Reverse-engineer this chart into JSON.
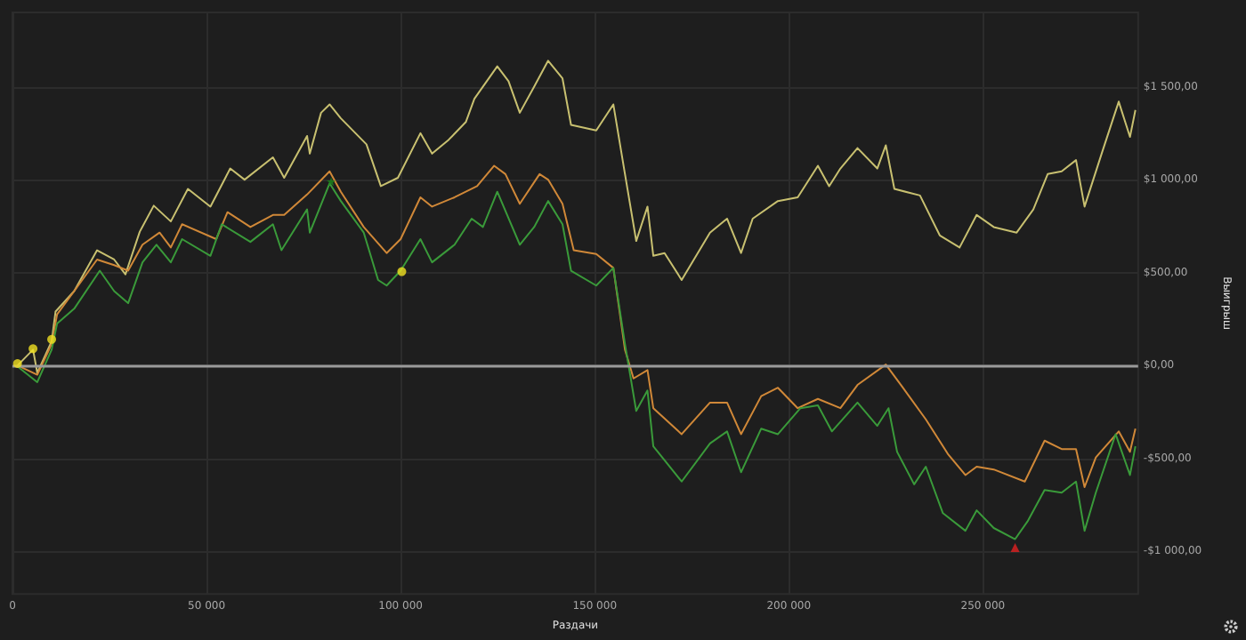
{
  "chart_data": {
    "type": "line",
    "xlabel": "Раздачи",
    "ylabel": "Выигрыш",
    "xlim": [
      0,
      290000
    ],
    "ylim": [
      -1230,
      1900
    ],
    "xticks": [
      0,
      {
        "value": 50000,
        "label": "50 000"
      },
      {
        "value": 100000,
        "label": "100 000"
      },
      {
        "value": 150000,
        "label": "150 000"
      },
      {
        "value": 200000,
        "label": "200 000"
      },
      {
        "value": 250000,
        "label": "250 000"
      }
    ],
    "yticks": [
      {
        "value": -1000,
        "label": "-$1 000,00"
      },
      {
        "value": -500,
        "label": "-$500,00"
      },
      {
        "value": 0,
        "label": "$0,00"
      },
      {
        "value": 500,
        "label": "$500,00"
      },
      {
        "value": 1000,
        "label": "$1 000,00"
      },
      {
        "value": 1500,
        "label": "$1 500,00"
      }
    ],
    "grid": true,
    "marker": "none",
    "ref_lines": [
      {
        "axis": "y",
        "value": 0,
        "color": "#9a9a9a"
      }
    ],
    "series": [
      {
        "color": "#c8c070",
        "x": [
          1300,
          5300,
          6400,
          10100,
          11100,
          15900,
          21800,
          26200,
          29100,
          32800,
          36400,
          40800,
          45200,
          51000,
          56100,
          59800,
          67100,
          70000,
          75900,
          76600,
          79500,
          81700,
          84600,
          91200,
          94900,
          99300,
          105100,
          108100,
          112400,
          116800,
          119000,
          124900,
          127800,
          130700,
          134400,
          138000,
          141700,
          143900,
          150400,
          154800,
          157800,
          160700,
          163600,
          165100,
          168000,
          172400,
          179700,
          184100,
          187700,
          190700,
          197200,
          202300,
          207500,
          210400,
          213300,
          217700,
          222800,
          225000,
          227200,
          233800,
          238900,
          244000,
          248400,
          252800,
          258700,
          263000,
          266700,
          270300,
          274000,
          276200,
          280600,
          285000,
          287900,
          289300
        ],
        "values": [
          0,
          85,
          -40,
          130,
          290,
          400,
          620,
          570,
          490,
          720,
          860,
          775,
          950,
          855,
          1060,
          1000,
          1120,
          1010,
          1235,
          1140,
          1360,
          1405,
          1330,
          1190,
          965,
          1010,
          1250,
          1140,
          1215,
          1310,
          1435,
          1610,
          1530,
          1360,
          1500,
          1640,
          1545,
          1295,
          1265,
          1405,
          1030,
          670,
          855,
          590,
          605,
          460,
          715,
          790,
          605,
          790,
          885,
          905,
          1075,
          965,
          1060,
          1170,
          1060,
          1185,
          950,
          915,
          700,
          635,
          810,
          745,
          715,
          840,
          1030,
          1045,
          1105,
          855,
          1140,
          1420,
          1230,
          1375
        ]
      },
      {
        "color": "#d08838",
        "x": [
          1300,
          6400,
          10100,
          11500,
          15900,
          21800,
          26200,
          29800,
          33500,
          37900,
          40800,
          43700,
          52500,
          55400,
          61300,
          67100,
          70000,
          75900,
          81700,
          84600,
          90500,
          96400,
          100000,
          105100,
          108100,
          113900,
          119700,
          124100,
          127000,
          130700,
          135800,
          138000,
          141700,
          144600,
          150400,
          154800,
          157800,
          160000,
          163600,
          165100,
          172400,
          179700,
          184100,
          187700,
          192900,
          197200,
          202300,
          207500,
          213300,
          217700,
          225000,
          229400,
          235300,
          241100,
          245500,
          248400,
          252800,
          260800,
          265900,
          270300,
          274000,
          276200,
          279100,
          285000,
          287900,
          289300
        ],
        "values": [
          0,
          -50,
          115,
          275,
          400,
          570,
          540,
          510,
          650,
          715,
          635,
          760,
          680,
          825,
          745,
          810,
          810,
          920,
          1045,
          935,
          745,
          605,
          680,
          905,
          855,
          905,
          965,
          1075,
          1030,
          870,
          1030,
          1000,
          870,
          620,
          600,
          525,
          85,
          -70,
          -25,
          -230,
          -370,
          -200,
          -200,
          -370,
          -165,
          -120,
          -230,
          -180,
          -230,
          -105,
          5,
          -120,
          -290,
          -480,
          -590,
          -545,
          -560,
          -625,
          -405,
          -450,
          -450,
          -655,
          -495,
          -355,
          -465,
          -340
        ]
      },
      {
        "color": "#3a9a3a",
        "x": [
          1300,
          6400,
          10100,
          11500,
          15900,
          22500,
          26200,
          29800,
          33500,
          37100,
          40800,
          43700,
          51000,
          53900,
          61300,
          67100,
          69300,
          75900,
          76600,
          81700,
          84600,
          90500,
          94200,
          96400,
          100000,
          105100,
          108100,
          113900,
          118300,
          121200,
          124900,
          130700,
          134400,
          138000,
          141700,
          143900,
          150400,
          154800,
          157800,
          160700,
          163600,
          165100,
          172400,
          179700,
          184100,
          187700,
          192900,
          197200,
          203000,
          207500,
          211100,
          217700,
          222800,
          225700,
          227900,
          232300,
          235300,
          239700,
          245500,
          248400,
          252800,
          258300,
          261500,
          265900,
          270300,
          274000,
          276200,
          279100,
          284200,
          287900,
          289300
        ],
        "values": [
          -5,
          -90,
          85,
          225,
          305,
          510,
          400,
          335,
          555,
          650,
          555,
          680,
          590,
          760,
          665,
          760,
          620,
          840,
          715,
          980,
          885,
          715,
          460,
          430,
          510,
          680,
          555,
          650,
          790,
          745,
          935,
          650,
          745,
          885,
          760,
          510,
          430,
          525,
          115,
          -245,
          -135,
          -435,
          -625,
          -420,
          -355,
          -575,
          -340,
          -370,
          -230,
          -215,
          -355,
          -200,
          -325,
          -230,
          -465,
          -640,
          -545,
          -795,
          -890,
          -780,
          -875,
          -935,
          -840,
          -670,
          -685,
          -625,
          -890,
          -685,
          -370,
          -590,
          -435
        ]
      },
      {
        "type": "scatter",
        "marker": "circle",
        "color": "#f0e020",
        "x": [
          1300,
          5300,
          10100,
          100300
        ],
        "values": [
          10,
          90,
          140,
          505
        ]
      },
      {
        "type": "scatter",
        "marker": "star",
        "color": "#1a8a1a",
        "x": [
          82100
        ],
        "values": [
          990
        ]
      },
      {
        "type": "scatter",
        "marker": "triangle",
        "color": "#e02020",
        "x": [
          258300
        ],
        "values": [
          -980
        ]
      }
    ]
  }
}
